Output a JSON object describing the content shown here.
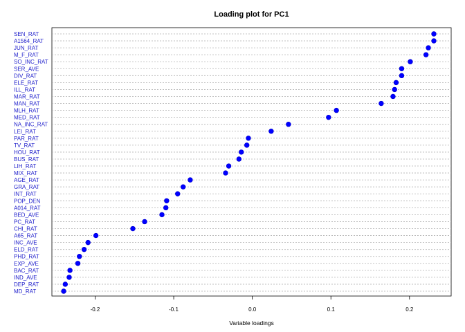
{
  "chart_data": {
    "type": "scatter",
    "title": "Loading plot for PC1",
    "xlabel": "Variable loadings",
    "ylabel": "",
    "xlim": [
      -0.255,
      0.253
    ],
    "xticks": [
      -0.2,
      -0.1,
      0.0,
      0.1,
      0.2
    ],
    "xtick_labels": [
      "-0.2",
      "-0.1",
      "0.0",
      "0.1",
      "0.2"
    ],
    "grid": "horizontal dotted lines per variable",
    "point_color": "#0000ff",
    "label_color": "#2222cc",
    "points": [
      {
        "label": "SEN_RAT",
        "value": 0.231
      },
      {
        "label": "A1564_RAT",
        "value": 0.231
      },
      {
        "label": "JUN_RAT",
        "value": 0.224
      },
      {
        "label": "M_F_RAT",
        "value": 0.221
      },
      {
        "label": "SO_INC_RAT",
        "value": 0.201
      },
      {
        "label": "SER_AVE",
        "value": 0.19
      },
      {
        "label": "DIV_RAT",
        "value": 0.19
      },
      {
        "label": "ELE_RAT",
        "value": 0.183
      },
      {
        "label": "ILL_RAT",
        "value": 0.181
      },
      {
        "label": "MAR_RAT",
        "value": 0.179
      },
      {
        "label": "MAN_RAT",
        "value": 0.164
      },
      {
        "label": "MLH_RAT",
        "value": 0.107
      },
      {
        "label": "MED_RAT",
        "value": 0.097
      },
      {
        "label": "NA_INC_RAT",
        "value": 0.046
      },
      {
        "label": "LEI_RAT",
        "value": 0.024
      },
      {
        "label": "PAR_RAT",
        "value": -0.005
      },
      {
        "label": "TV_RAT",
        "value": -0.007
      },
      {
        "label": "HOU_RAT",
        "value": -0.014
      },
      {
        "label": "BUS_RAT",
        "value": -0.017
      },
      {
        "label": "LIH_RAT",
        "value": -0.03
      },
      {
        "label": "MIX_RAT",
        "value": -0.034
      },
      {
        "label": "AGE_RAT",
        "value": -0.079
      },
      {
        "label": "GRA_RAT",
        "value": -0.088
      },
      {
        "label": "INT_RAT",
        "value": -0.095
      },
      {
        "label": "POP_DEN",
        "value": -0.109
      },
      {
        "label": "A014_RAT",
        "value": -0.11
      },
      {
        "label": "BED_AVE",
        "value": -0.115
      },
      {
        "label": "PC_RAT",
        "value": -0.137
      },
      {
        "label": "CHI_RAT",
        "value": -0.152
      },
      {
        "label": "A65_RAT",
        "value": -0.199
      },
      {
        "label": "INC_AVE",
        "value": -0.209
      },
      {
        "label": "ELD_RAT",
        "value": -0.214
      },
      {
        "label": "PHD_RAT",
        "value": -0.22
      },
      {
        "label": "EXP_AVE",
        "value": -0.222
      },
      {
        "label": "BAC_RAT",
        "value": -0.232
      },
      {
        "label": "IND_AVE",
        "value": -0.233
      },
      {
        "label": "DEP_RAT",
        "value": -0.238
      },
      {
        "label": "MD_RAT",
        "value": -0.24
      }
    ]
  }
}
